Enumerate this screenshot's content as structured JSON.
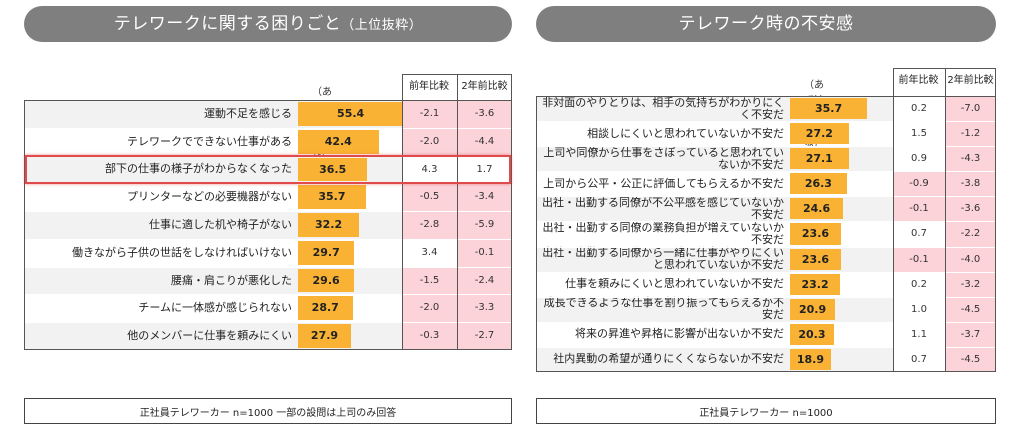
{
  "colors": {
    "bar": "#f9b233",
    "negative_cell": "#fbd3d9",
    "title_pill": "#7f7f7f",
    "highlight": "#e04a4a"
  },
  "left_panel": {
    "title": "テレワークに関する困りごと",
    "title_sub": "（上位抜粋）",
    "bar_caption": "（あてはまる計・%）",
    "col1_header": "前年比較",
    "col2_header": "2年前比較",
    "footer": "正社員テレワーカー n=1000 一部の設問は上司のみ回答",
    "highlighted_row": 2
  },
  "right_panel": {
    "title": "テレワーク時の不安感",
    "bar_caption": "（あてはまる計・%）",
    "col1_header": "前年比較",
    "col2_header": "2年前比較",
    "footer": "正社員テレワーカー n=1000"
  },
  "chart_data": [
    {
      "type": "bar",
      "title": "テレワークに関する困りごと（上位抜粋）",
      "xlim": [
        0,
        100
      ],
      "categories": [
        "運動不足を感じる",
        "テレワークでできない仕事がある",
        "部下の仕事の様子がわからなくなった",
        "プリンターなどの必要機器がない",
        "仕事に適した机や椅子がない",
        "働きながら子供の世話をしなければいけない",
        "腰痛・肩こりが悪化した",
        "チームに一体感が感じられない",
        "他のメンバーに仕事を頼みにくい"
      ],
      "values": [
        55.4,
        42.4,
        36.5,
        35.7,
        32.2,
        29.7,
        29.6,
        28.7,
        27.9
      ],
      "value_labels": [
        "55.4",
        "42.4",
        "36.5",
        "35.7",
        "32.2",
        "29.7",
        "29.6",
        "28.7",
        "27.9"
      ],
      "diff_prev_year": [
        "-2.1",
        "-2.0",
        "4.3",
        "-0.5",
        "-2.8",
        "3.4",
        "-1.5",
        "-2.0",
        "-0.3"
      ],
      "diff_two_years": [
        "-3.6",
        "-4.4",
        "1.7",
        "-3.4",
        "-5.9",
        "-0.1",
        "-2.4",
        "-3.3",
        "-2.7"
      ]
    },
    {
      "type": "bar",
      "title": "テレワーク時の不安感",
      "xlim": [
        0,
        100
      ],
      "categories": [
        "非対面のやりとりは、相手の気持ちがわかりにくく不安だ",
        "相談しにくいと思われていないか不安だ",
        "上司や同僚から仕事をさぼっていると思われていないか不安だ",
        "上司から公平・公正に評価してもらえるか不安だ",
        "出社・出勤する同僚が不公平感を感じていないか不安だ",
        "出社・出勤する同僚の業務負担が増えていないか不安だ",
        "出社・出勤する同僚から一緒に仕事がやりにくいと思われていないか不安だ",
        "仕事を頼みにくいと思われていないか不安だ",
        "成長できるような仕事を割り振ってもらえるか不安だ",
        "将来の昇進や昇格に影響が出ないか不安だ",
        "社内異動の希望が通りにくくならないか不安だ"
      ],
      "values": [
        35.7,
        27.2,
        27.1,
        26.3,
        24.6,
        23.6,
        23.6,
        23.2,
        20.9,
        20.3,
        18.9
      ],
      "value_labels": [
        "35.7",
        "27.2",
        "27.1",
        "26.3",
        "24.6",
        "23.6",
        "23.6",
        "23.2",
        "20.9",
        "20.3",
        "18.9"
      ],
      "diff_prev_year": [
        "0.2",
        "1.5",
        "0.9",
        "-0.9",
        "-0.1",
        "0.7",
        "-0.1",
        "0.2",
        "1.0",
        "1.1",
        "0.7"
      ],
      "diff_two_years": [
        "-7.0",
        "-1.2",
        "-4.3",
        "-3.8",
        "-3.6",
        "-2.2",
        "-4.0",
        "-3.2",
        "-4.5",
        "-3.7",
        "-4.5"
      ]
    }
  ]
}
